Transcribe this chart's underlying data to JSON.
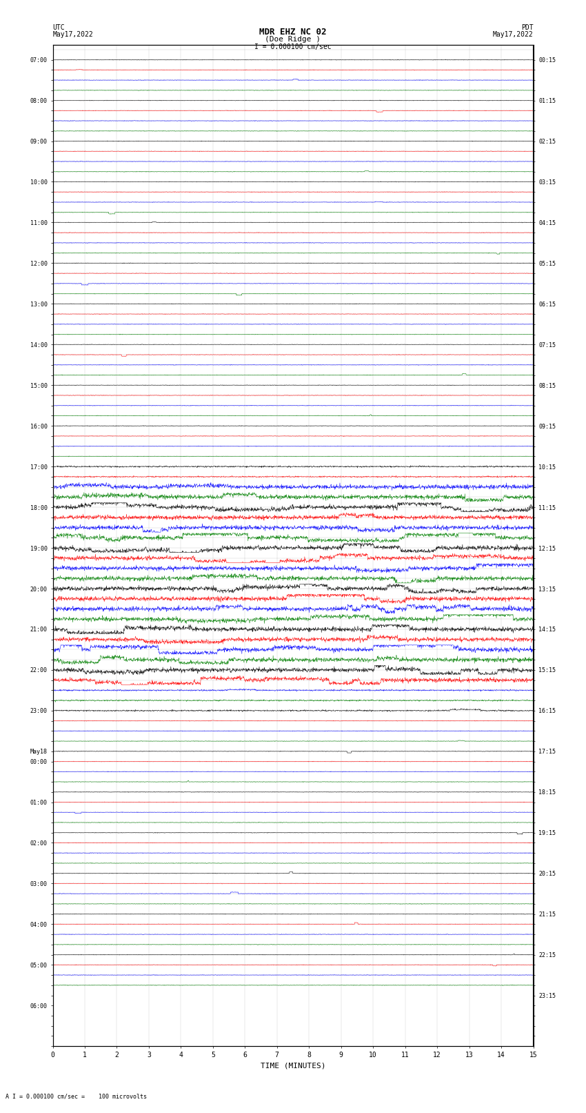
{
  "title_line1": "MDR EHZ NC 02",
  "title_line2": "(Doe Ridge )",
  "scale_text": "I = 0.000100 cm/sec",
  "left_label_top": "UTC",
  "left_label_date": "May17,2022",
  "right_label_top": "PDT",
  "right_label_date": "May17,2022",
  "bottom_label": "TIME (MINUTES)",
  "bottom_note": "A I = 0.000100 cm/sec =    100 microvolts",
  "utc_times": [
    "07:00",
    "",
    "",
    "",
    "08:00",
    "",
    "",
    "",
    "09:00",
    "",
    "",
    "",
    "10:00",
    "",
    "",
    "",
    "11:00",
    "",
    "",
    "",
    "12:00",
    "",
    "",
    "",
    "13:00",
    "",
    "",
    "",
    "14:00",
    "",
    "",
    "",
    "15:00",
    "",
    "",
    "",
    "16:00",
    "",
    "",
    "",
    "17:00",
    "",
    "",
    "",
    "18:00",
    "",
    "",
    "",
    "19:00",
    "",
    "",
    "",
    "20:00",
    "",
    "",
    "",
    "21:00",
    "",
    "",
    "",
    "22:00",
    "",
    "",
    "",
    "23:00",
    "",
    "",
    "",
    "May18",
    "00:00",
    "",
    "",
    "",
    "01:00",
    "",
    "",
    "",
    "02:00",
    "",
    "",
    "",
    "03:00",
    "",
    "",
    "",
    "04:00",
    "",
    "",
    "",
    "05:00",
    "",
    "",
    "",
    "06:00",
    "",
    "",
    "",
    ""
  ],
  "pdt_times": [
    "00:15",
    "",
    "",
    "",
    "01:15",
    "",
    "",
    "",
    "02:15",
    "",
    "",
    "",
    "03:15",
    "",
    "",
    "",
    "04:15",
    "",
    "",
    "",
    "05:15",
    "",
    "",
    "",
    "06:15",
    "",
    "",
    "",
    "07:15",
    "",
    "",
    "",
    "08:15",
    "",
    "",
    "",
    "09:15",
    "",
    "",
    "",
    "10:15",
    "",
    "",
    "",
    "11:15",
    "",
    "",
    "",
    "12:15",
    "",
    "",
    "",
    "13:15",
    "",
    "",
    "",
    "14:15",
    "",
    "",
    "",
    "15:15",
    "",
    "",
    "",
    "16:15",
    "",
    "",
    "",
    "17:15",
    "",
    "",
    "",
    "18:15",
    "",
    "",
    "",
    "19:15",
    "",
    "",
    "",
    "20:15",
    "",
    "",
    "",
    "21:15",
    "",
    "",
    "",
    "22:15",
    "",
    "",
    "",
    "23:15",
    "",
    "",
    "",
    ""
  ],
  "n_rows": 92,
  "n_cols": 15,
  "background_color": "#ffffff",
  "grid_color": "#999999",
  "trace_colors": [
    "black",
    "red",
    "blue",
    "green"
  ],
  "figsize": [
    8.5,
    16.13
  ]
}
